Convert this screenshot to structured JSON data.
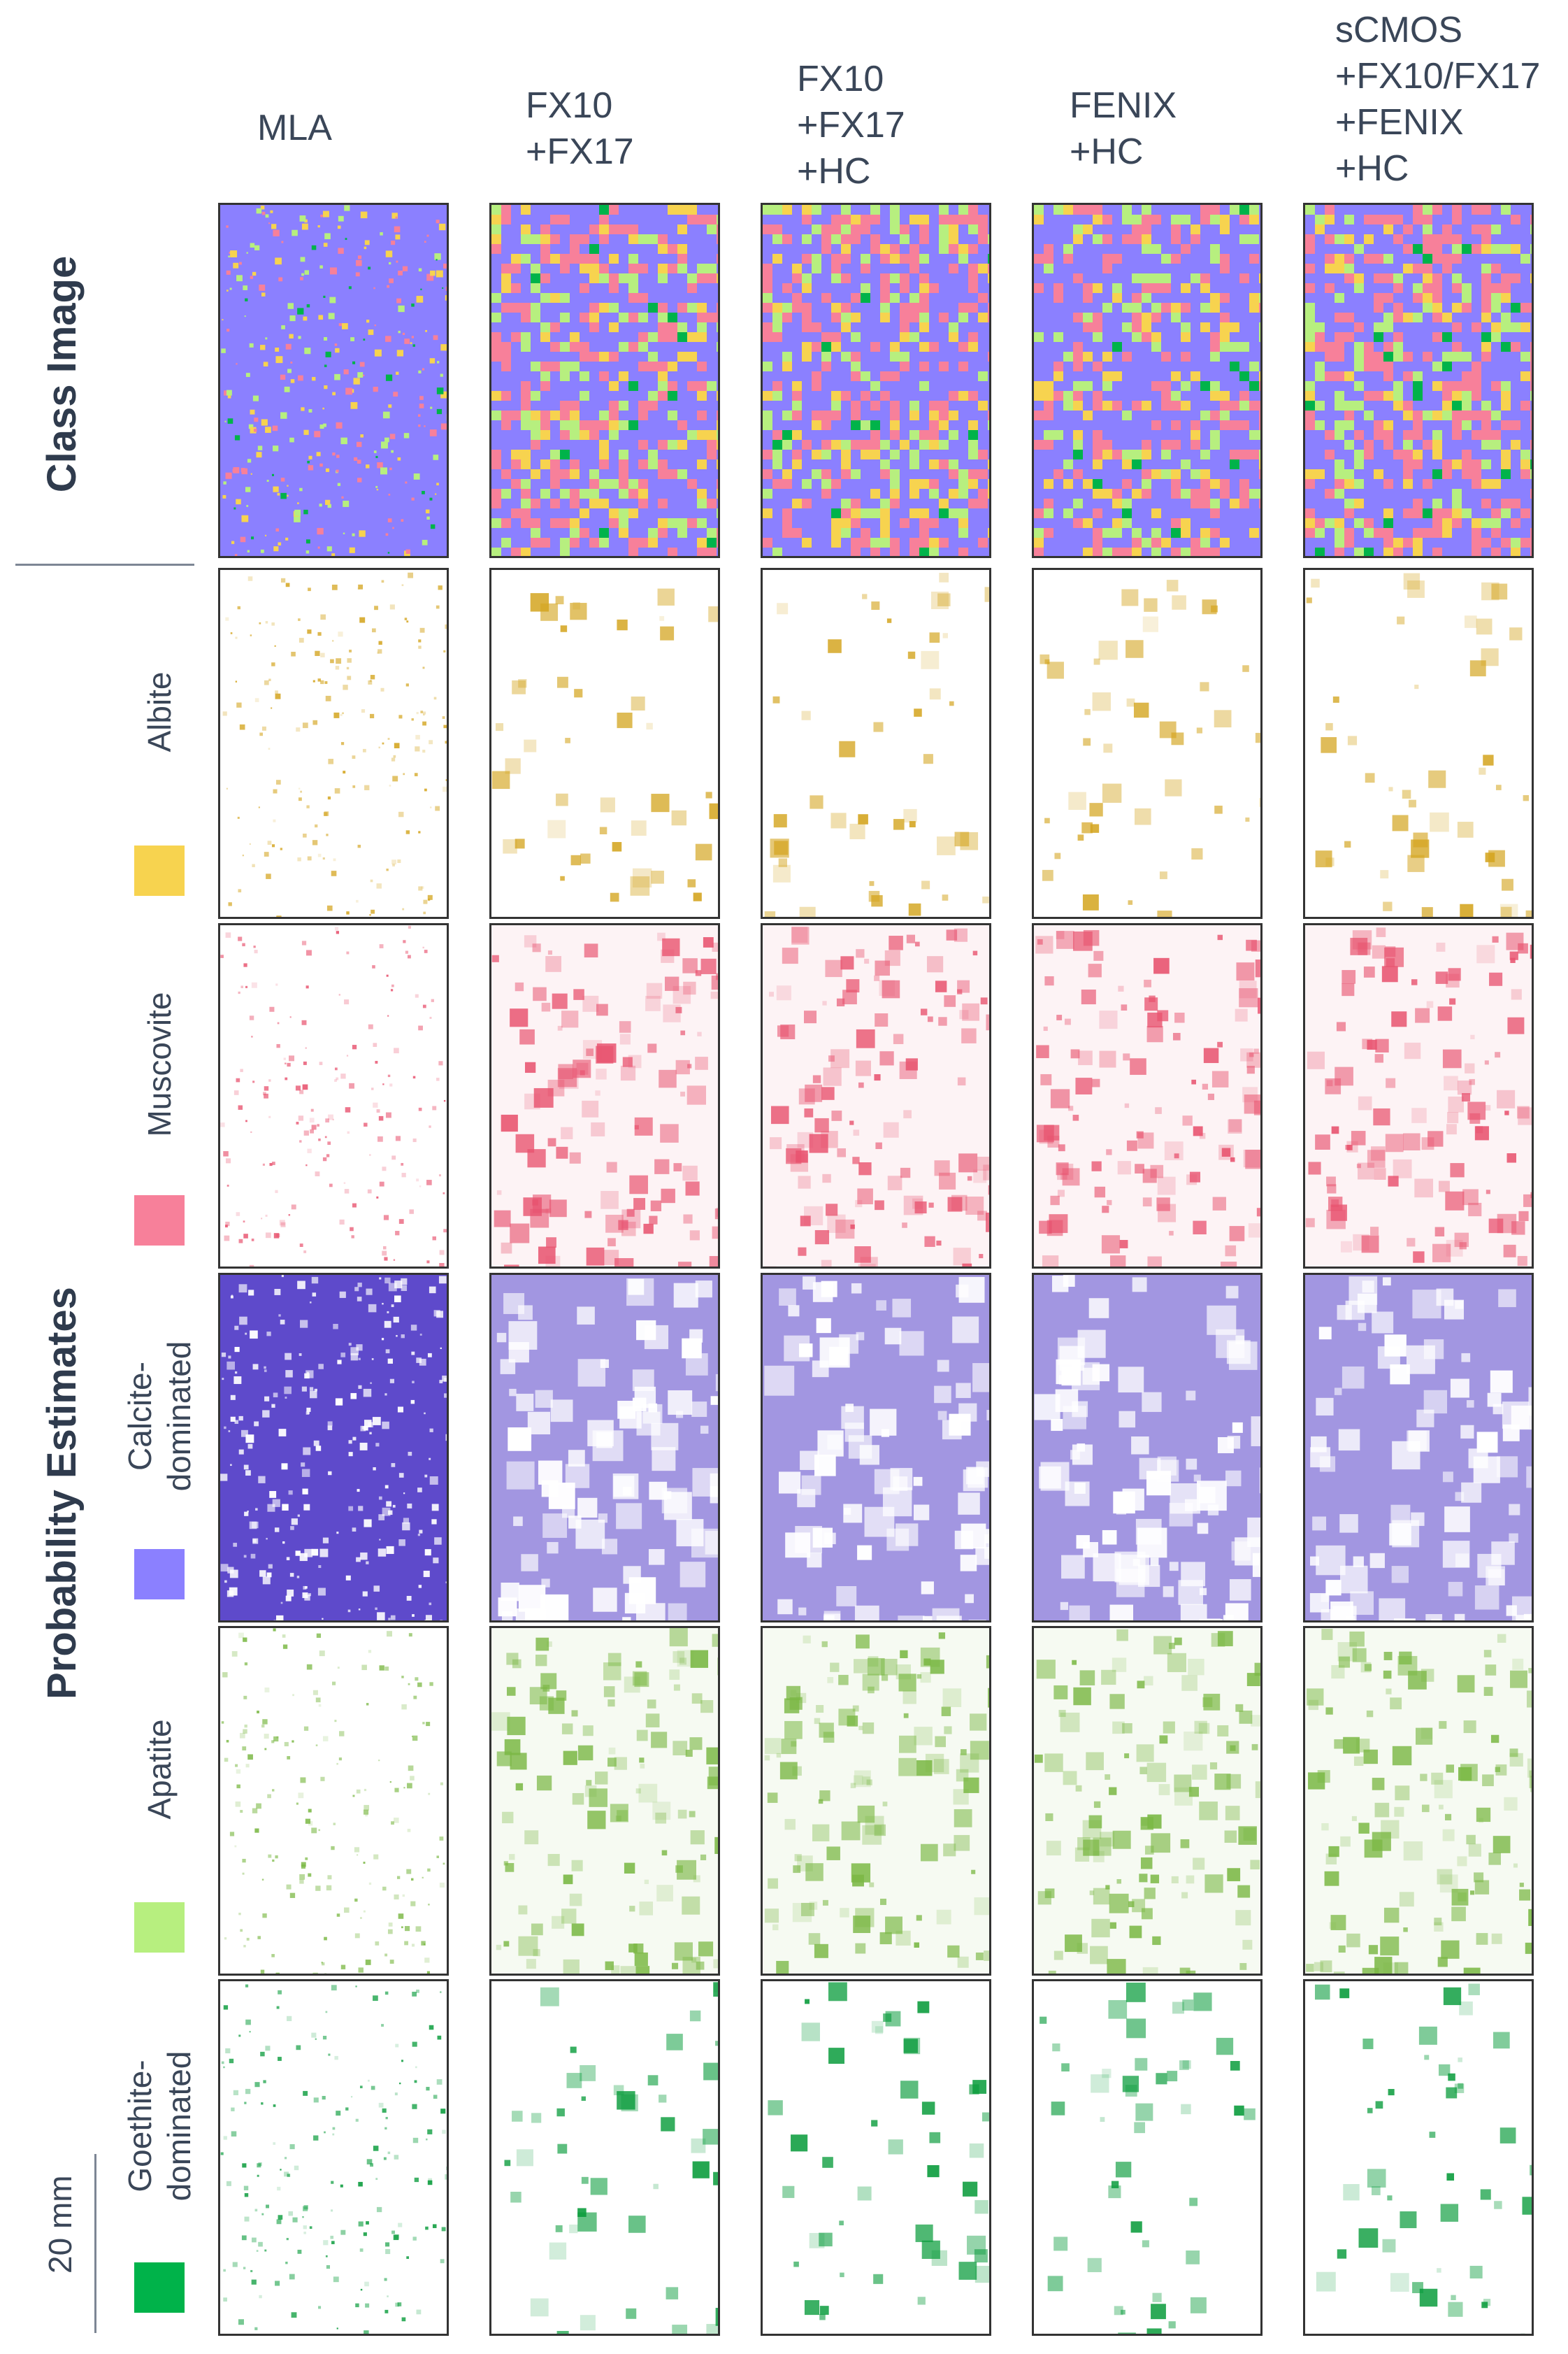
{
  "columns": [
    {
      "label": "MLA"
    },
    {
      "label": "FX10\n+FX17"
    },
    {
      "label": "FX10\n+FX17\n+HC"
    },
    {
      "label": "FENIX\n+HC"
    },
    {
      "label": "sCMOS\n+FX10/FX17\n+FENIX\n+HC"
    }
  ],
  "row_titles": {
    "class_image": "Class Image",
    "probability": "Probability Estimates"
  },
  "minerals": [
    {
      "label": "Albite",
      "color": "#f7d34f",
      "map_color": "#d4a520"
    },
    {
      "label": "Muscovite",
      "color": "#f7809a",
      "map_color": "#e8536f"
    },
    {
      "label": "Calcite-\ndominated",
      "color": "#8b80ff",
      "map_color": "#5540c8"
    },
    {
      "label": "Apatite",
      "color": "#b7ef7f",
      "map_color": "#7bb845"
    },
    {
      "label": "Goethite-\ndominated",
      "color": "#00b34a",
      "map_color": "#0a9c3c"
    }
  ],
  "class_palette": {
    "background": "#8b80ff",
    "classes": [
      "#f7d34f",
      "#f7809a",
      "#b7ef7f",
      "#00b34a"
    ]
  },
  "scale_bar": {
    "label": "20 mm"
  }
}
